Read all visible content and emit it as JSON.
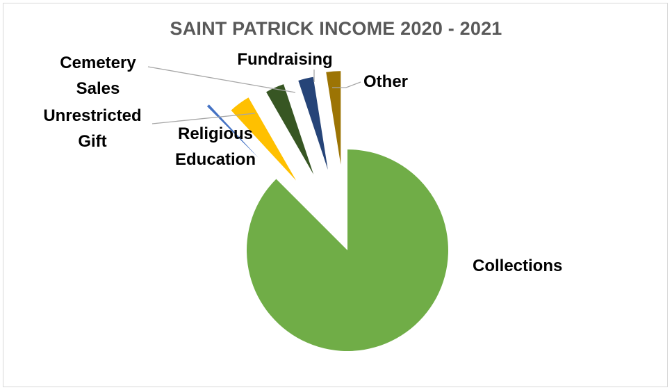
{
  "chart_data": {
    "type": "pie",
    "title": "SAINT PATRICK INCOME 2020 - 2021",
    "slices": [
      {
        "label": "Collections",
        "value": 87.5,
        "color": "#70ad47"
      },
      {
        "label": "Unrestricted Gift",
        "value": 0.6,
        "color": "#4472c4"
      },
      {
        "label": "Religious Education",
        "value": 3.6,
        "color": "#ffc000"
      },
      {
        "label": "Cemetery Sales",
        "value": 3.2,
        "color": "#375623"
      },
      {
        "label": "Fundraising",
        "value": 2.6,
        "color": "#264478"
      },
      {
        "label": "Other",
        "value": 2.5,
        "color": "#9c7404"
      }
    ],
    "legend": "none"
  }
}
